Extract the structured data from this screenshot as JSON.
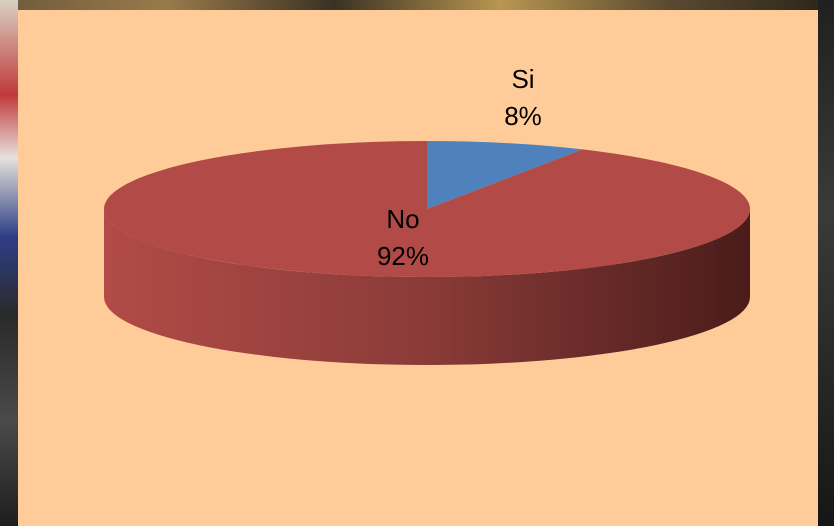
{
  "chart_data": {
    "type": "pie",
    "style": "3d",
    "categories": [
      "Si",
      "No"
    ],
    "values": [
      8,
      92
    ],
    "labels": [
      "8%",
      "92%"
    ],
    "colors": [
      "#4f81bd",
      "#b24b47"
    ],
    "legend": "none"
  }
}
